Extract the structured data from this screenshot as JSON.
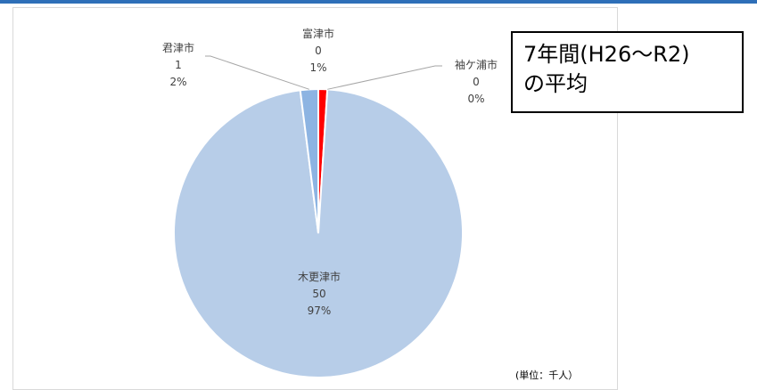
{
  "chart_data": {
    "type": "pie",
    "slices": [
      {
        "name": "富津市",
        "value": 0,
        "percent": "1%",
        "share": 0.01,
        "color": "#ff0000"
      },
      {
        "name": "袖ケ浦市",
        "value": 0,
        "percent": "0%",
        "share": 0.0,
        "color": "#2e6fb8"
      },
      {
        "name": "木更津市",
        "value": 50,
        "percent": "97%",
        "share": 0.97,
        "color": "#b7cde8"
      },
      {
        "name": "君津市",
        "value": 1,
        "percent": "2%",
        "share": 0.02,
        "color": "#8db4e2"
      }
    ],
    "unit_note": "(単位：千人）"
  },
  "note": {
    "line1": "7年間(H26～R2)",
    "line2": "の平均"
  },
  "colors": {
    "top_rule": "#2e6fb8",
    "leader_line": "#a6a6a6",
    "slice_border": "#ffffff"
  }
}
